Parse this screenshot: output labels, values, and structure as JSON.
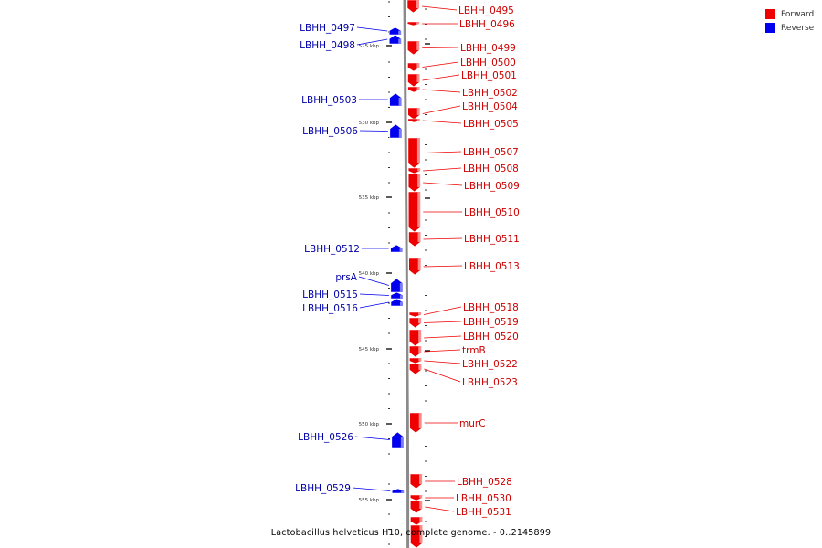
{
  "legend": {
    "forward_label": "Forward",
    "reverse_label": "Reverse",
    "forward_color": "#ee0000",
    "reverse_color": "#0000ee"
  },
  "caption": "Lactobacillus helveticus H10, complete genome. - 0..2145899",
  "chart_data": {
    "type": "genome-map",
    "tick_labels": [
      "525 kbp",
      "530 kbp",
      "535 kbp",
      "540 kbp",
      "545 kbp",
      "550 kbp",
      "555 kbp"
    ],
    "forward_genes": [
      "LBHH_0495",
      "LBHH_0496",
      "LBHH_0499",
      "LBHH_0500",
      "LBHH_0501",
      "LBHH_0502",
      "LBHH_0504",
      "LBHH_0505",
      "LBHH_0507",
      "LBHH_0508",
      "LBHH_0509",
      "LBHH_0510",
      "LBHH_0511",
      "LBHH_0513",
      "LBHH_0518",
      "LBHH_0519",
      "LBHH_0520",
      "trmB",
      "LBHH_0522",
      "LBHH_0523",
      "murC",
      "LBHH_0528",
      "LBHH_0530",
      "LBHH_0531"
    ],
    "reverse_genes": [
      "LBHH_0497",
      "LBHH_0498",
      "LBHH_0503",
      "LBHH_0506",
      "LBHH_0512",
      "prsA",
      "LBHH_0515",
      "LBHH_0516",
      "LBHH_0526",
      "LBHH_0529"
    ]
  }
}
